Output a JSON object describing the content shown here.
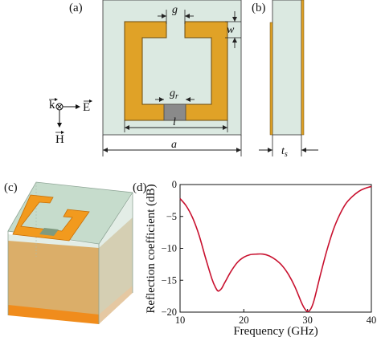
{
  "panels": {
    "a": {
      "label": "(a)"
    },
    "b": {
      "label": "(b)"
    },
    "c": {
      "label": "(c)"
    },
    "d": {
      "label": "(d)"
    }
  },
  "dimensions": {
    "g": "g",
    "w": "w",
    "g_r_main": "g",
    "g_r_sub": "r",
    "l": "l",
    "a": "a",
    "t_s_main": "t",
    "t_s_sub": "s"
  },
  "field_vectors": {
    "k": "k",
    "E": "E",
    "H": "H"
  },
  "colors": {
    "substrate": "#dbe9e1",
    "copper": "#e0a227",
    "gap_load": "#8a8a8a",
    "curve": "#c8102e",
    "cube_face": "#c2d8c8",
    "cube_ground": "#f08c1c"
  },
  "chart_data": {
    "type": "line",
    "xlabel": "Frequency (GHz)",
    "ylabel": "Reflection coefficient (dB)",
    "xlim": [
      10,
      40
    ],
    "ylim": [
      -20,
      0
    ],
    "x_ticks": [
      10,
      20,
      30,
      40
    ],
    "y_ticks": [
      0,
      -5,
      -10,
      -15,
      -20
    ],
    "series": [
      {
        "x": [
          10,
          11,
          12,
          13,
          14,
          15,
          15.6,
          16,
          16.5,
          17,
          18,
          19,
          20,
          21,
          22,
          23,
          24,
          25,
          26,
          27,
          28,
          29,
          29.5,
          30,
          30.5,
          31,
          32,
          33,
          34,
          35,
          36,
          37,
          38,
          39,
          40
        ],
        "y": [
          -2.2,
          -3.4,
          -5.3,
          -8.0,
          -11.5,
          -14.8,
          -16.2,
          -16.7,
          -16.3,
          -15.4,
          -13.6,
          -12.2,
          -11.4,
          -11.0,
          -10.9,
          -10.9,
          -11.2,
          -11.8,
          -12.7,
          -14.1,
          -16.0,
          -18.4,
          -19.4,
          -19.9,
          -19.5,
          -18.2,
          -14.2,
          -10.4,
          -7.2,
          -4.8,
          -3.0,
          -1.9,
          -1.1,
          -0.6,
          -0.3
        ]
      }
    ]
  }
}
